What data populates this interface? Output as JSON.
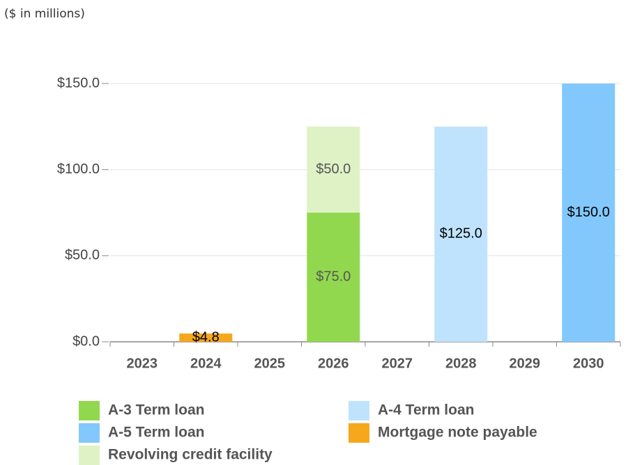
{
  "chart_data": {
    "type": "stacked_bar",
    "subtitle": "($ in millions)",
    "categories": [
      "2023",
      "2024",
      "2025",
      "2026",
      "2027",
      "2028",
      "2029",
      "2030"
    ],
    "series": [
      {
        "name": "A-3 Term loan",
        "color": "#92d84f",
        "label_color": "#555555",
        "values": [
          null,
          null,
          null,
          75,
          null,
          null,
          null,
          null
        ],
        "value_labels": [
          null,
          null,
          null,
          "$75.0",
          null,
          null,
          null,
          null
        ]
      },
      {
        "name": "A-4 Term loan",
        "color": "#bfe3fd",
        "label_color": "#000000",
        "values": [
          null,
          null,
          null,
          null,
          null,
          125,
          null,
          null
        ],
        "value_labels": [
          null,
          null,
          null,
          null,
          null,
          "$125.0",
          null,
          null
        ]
      },
      {
        "name": "A-5 Term loan",
        "color": "#82c8fd",
        "label_color": "#000000",
        "values": [
          null,
          null,
          null,
          null,
          null,
          null,
          null,
          150
        ],
        "value_labels": [
          null,
          null,
          null,
          null,
          null,
          null,
          null,
          "$150.0"
        ]
      },
      {
        "name": "Mortgage note payable",
        "color": "#f5a81c",
        "label_color": "#000000",
        "values": [
          null,
          4.8,
          null,
          null,
          null,
          null,
          null,
          null
        ],
        "value_labels": [
          null,
          "$4.8",
          null,
          null,
          null,
          null,
          null,
          null
        ]
      },
      {
        "name": "Revolving credit facility",
        "color": "#dff2c5",
        "label_color": "#555555",
        "values": [
          null,
          null,
          null,
          50,
          null,
          null,
          null,
          null
        ],
        "value_labels": [
          null,
          null,
          null,
          "$50.0",
          null,
          null,
          null,
          null
        ]
      }
    ],
    "ylim": [
      0,
      150
    ],
    "yticks": [
      {
        "value": 0,
        "label": "$0.0"
      },
      {
        "value": 50,
        "label": "$50.0"
      },
      {
        "value": 100,
        "label": "$100.0"
      },
      {
        "value": 150,
        "label": "$150.0"
      }
    ],
    "grid": true
  }
}
